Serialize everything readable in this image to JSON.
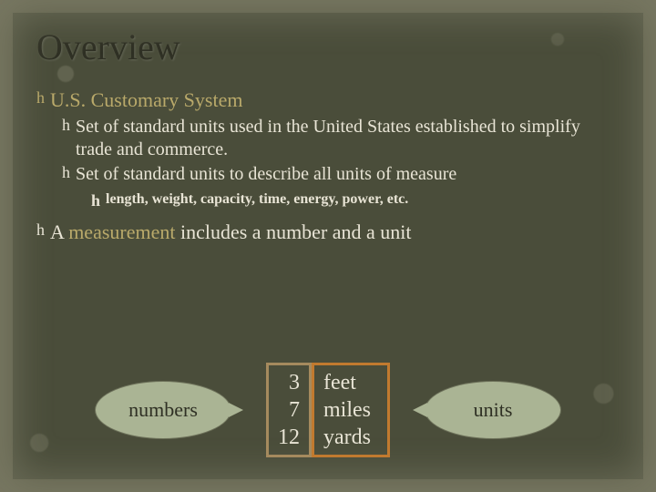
{
  "title": "Overview",
  "bullets": {
    "heading1": "U.S. Customary System",
    "sub1": "Set of standard units used in the United States established to simplify trade and commerce.",
    "sub2": "Set of standard units to describe all units of measure",
    "sub2a": "length, weight, capacity, time, energy, power, etc.",
    "heading2_pre": "A ",
    "heading2_accent": "measurement",
    "heading2_post": " includes a number and a unit"
  },
  "callouts": {
    "left": "numbers",
    "right": "units"
  },
  "examples": {
    "numbers": [
      "3",
      "7",
      "12"
    ],
    "units": [
      "feet",
      "miles",
      "yards"
    ]
  },
  "colors": {
    "background": "#4a4d3a",
    "title": "#2f3024",
    "accent": "#b9a96a",
    "body_text": "#e8e4d5",
    "callout_fill": "#aab494",
    "num_border": "#a58a5e",
    "unit_border": "#c17a2f"
  },
  "flourish_glyph": "h"
}
